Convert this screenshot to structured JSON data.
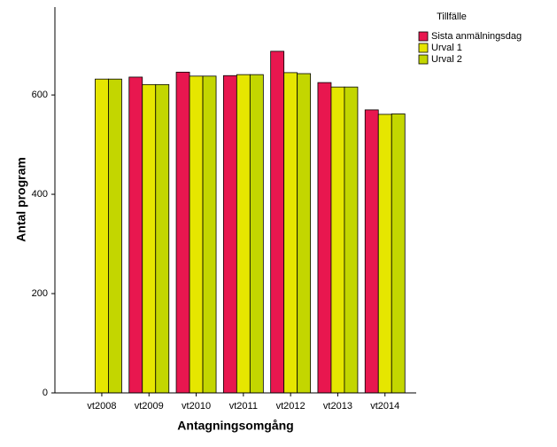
{
  "chart_data": {
    "type": "bar",
    "x_label": "Antagningsomgång",
    "y_label": "Antal program",
    "legend_title": "Tillfälle",
    "categories": [
      "vt2008",
      "vt2009",
      "vt2010",
      "vt2011",
      "vt2012",
      "vt2013",
      "vt2014"
    ],
    "series": [
      {
        "name": "Sista anmälningsdag",
        "color": "#e8174f",
        "values": [
          null,
          636,
          646,
          639,
          688,
          625,
          570
        ]
      },
      {
        "name": "Urval 1",
        "color": "#e6e600",
        "values": [
          632,
          621,
          638,
          641,
          645,
          616,
          561
        ]
      },
      {
        "name": "Urval 2",
        "color": "#c3d600",
        "values": [
          632,
          621,
          638,
          641,
          643,
          616,
          562
        ]
      }
    ],
    "ylim": [
      0,
      777
    ],
    "yticks": [
      0,
      200,
      400,
      600
    ],
    "legend": "top-right"
  }
}
